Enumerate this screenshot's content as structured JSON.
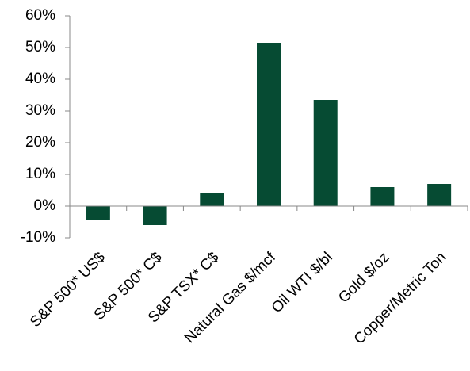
{
  "chart_data": {
    "type": "bar",
    "categories": [
      "S&P 500* US$",
      "S&P 500* C$",
      "S&P TSX* C$",
      "Natural Gas $/mcf",
      "Oil WTI $/bl",
      "Gold $/oz",
      "Copper/Metric Ton"
    ],
    "values": [
      -4.5,
      -6,
      4,
      51.5,
      33.5,
      6,
      7
    ],
    "color": "#064b33",
    "ylim": [
      -10,
      60
    ],
    "yticks": [
      {
        "value": -10,
        "label": "-10%"
      },
      {
        "value": 0,
        "label": "0%"
      },
      {
        "value": 10,
        "label": "10%"
      },
      {
        "value": 20,
        "label": "20%"
      },
      {
        "value": 30,
        "label": "30%"
      },
      {
        "value": 40,
        "label": "40%"
      },
      {
        "value": 50,
        "label": "50%"
      },
      {
        "value": 60,
        "label": "60%"
      }
    ],
    "grid": false
  }
}
